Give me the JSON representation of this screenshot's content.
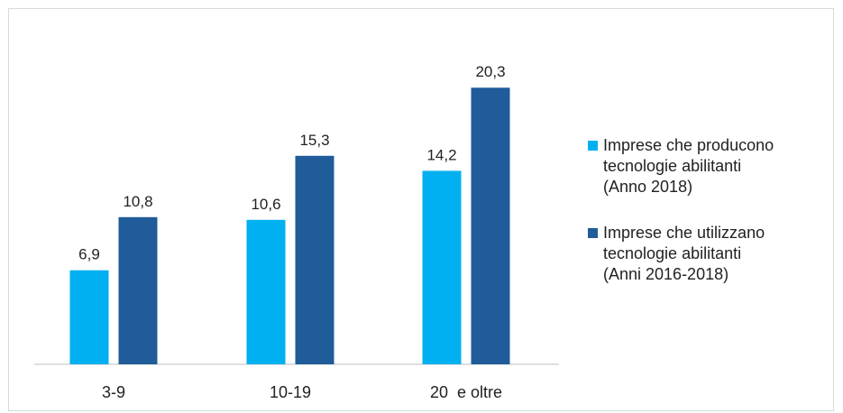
{
  "chart_data": {
    "type": "bar",
    "categories": [
      "3-9",
      "10-19",
      "20  e oltre"
    ],
    "series": [
      {
        "name": "Imprese che producono\ntecnologie abilitanti\n(Anno 2018)",
        "values": [
          6.9,
          10.6,
          14.2
        ],
        "labels": [
          "6,9",
          "10,6",
          "14,2"
        ],
        "color": "#00b0f0"
      },
      {
        "name": "Imprese che utilizzano\ntecnologie abilitanti\n(Anni 2016-2018)",
        "values": [
          10.8,
          15.3,
          20.3
        ],
        "labels": [
          "10,8",
          "15,3",
          "20,3"
        ],
        "color": "#1f5c99"
      }
    ],
    "ylim": [
      0,
      22.5
    ],
    "grid": false,
    "legend": "right"
  }
}
